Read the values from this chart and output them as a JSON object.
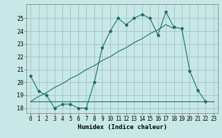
{
  "title": "",
  "xlabel": "Humidex (Indice chaleur)",
  "ylabel": "",
  "background_color": "#c8e8e8",
  "grid_color": "#a8c8c8",
  "line_color": "#1a6b6b",
  "x_values": [
    0,
    1,
    2,
    3,
    4,
    5,
    6,
    7,
    8,
    9,
    10,
    11,
    12,
    13,
    14,
    15,
    16,
    17,
    18,
    19,
    20,
    21,
    22,
    23
  ],
  "line1_y": [
    20.5,
    19.3,
    19.0,
    18.0,
    18.3,
    18.3,
    18.0,
    18.0,
    20.0,
    22.7,
    24.0,
    25.0,
    24.5,
    25.0,
    25.3,
    25.0,
    23.7,
    25.5,
    24.3,
    24.2,
    20.9,
    19.4,
    18.5,
    null
  ],
  "line2_y": [
    18.5,
    18.5,
    18.5,
    18.5,
    18.5,
    18.5,
    18.5,
    18.5,
    18.5,
    18.5,
    18.5,
    18.5,
    18.5,
    18.5,
    18.5,
    18.5,
    18.5,
    18.5,
    18.5,
    18.5,
    18.5,
    18.5,
    18.5,
    18.5
  ],
  "line3_y": [
    18.5,
    18.9,
    19.2,
    19.6,
    19.9,
    20.3,
    20.6,
    21.0,
    21.3,
    21.7,
    22.0,
    22.4,
    22.7,
    23.1,
    23.4,
    23.8,
    24.1,
    24.5,
    24.2,
    null,
    null,
    null,
    null,
    null
  ],
  "ylim": [
    17.6,
    26.1
  ],
  "xlim": [
    -0.5,
    23.5
  ],
  "yticks": [
    18,
    19,
    20,
    21,
    22,
    23,
    24,
    25
  ],
  "xticks": [
    0,
    1,
    2,
    3,
    4,
    5,
    6,
    7,
    8,
    9,
    10,
    11,
    12,
    13,
    14,
    15,
    16,
    17,
    18,
    19,
    20,
    21,
    22,
    23
  ]
}
